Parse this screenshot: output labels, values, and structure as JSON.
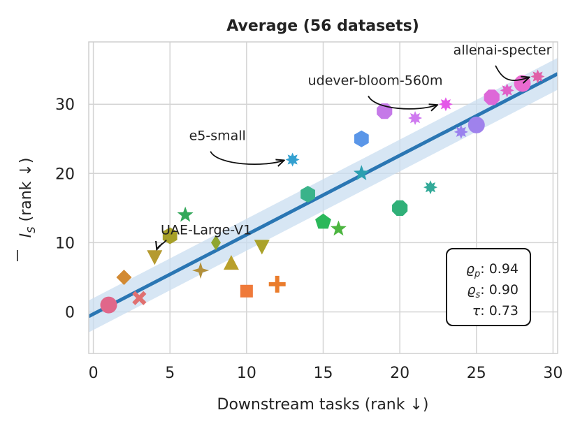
{
  "chart_data": {
    "type": "scatter",
    "title": "Average (56 datasets)",
    "xlabel": "Downstream tasks (rank ↓)",
    "ylabel_main": "I",
    "ylabel_sub": "S",
    "ylabel_rest": " (rank ↓)",
    "xlim": [
      -0.3,
      30.3
    ],
    "ylim": [
      -6,
      39
    ],
    "xticks": [
      0,
      5,
      10,
      15,
      20,
      25,
      30
    ],
    "yticks": [
      0,
      10,
      20,
      30
    ],
    "grid": true,
    "regression": {
      "intercept": -0.3,
      "slope": 1.145,
      "band_half_width": 2.3,
      "color": "#2a76b3",
      "band_color": "#c9ddf0"
    },
    "stats": [
      {
        "sym": "ϱ",
        "sub": "p",
        "value": "0.94"
      },
      {
        "sym": "ϱ",
        "sub": "s",
        "value": "0.90"
      },
      {
        "sym": "τ",
        "sub": "",
        "value": "0.73"
      }
    ],
    "points": [
      {
        "x": 1,
        "y": 1,
        "marker": "circle",
        "color": "#e0678a"
      },
      {
        "x": 2,
        "y": 5,
        "marker": "diamond",
        "color": "#d28a33"
      },
      {
        "x": 3,
        "y": 2,
        "marker": "x",
        "color": "#e07070"
      },
      {
        "x": 4,
        "y": 8,
        "marker": "triangle-down",
        "color": "#b59a30"
      },
      {
        "x": 5,
        "y": 11,
        "marker": "hexagon",
        "color": "#a7a028"
      },
      {
        "x": 6,
        "y": 14,
        "marker": "star",
        "color": "#33a85a"
      },
      {
        "x": 7,
        "y": 6,
        "marker": "star4",
        "color": "#b3903a"
      },
      {
        "x": 8,
        "y": 10,
        "marker": "diamond-thin",
        "color": "#8fa630"
      },
      {
        "x": 9,
        "y": 7,
        "marker": "triangle-up",
        "color": "#b9a02a"
      },
      {
        "x": 10,
        "y": 3,
        "marker": "square",
        "color": "#ef7a3a"
      },
      {
        "x": 11,
        "y": 9.5,
        "marker": "triangle-down",
        "color": "#aaa22a"
      },
      {
        "x": 12,
        "y": 4,
        "marker": "plus",
        "color": "#ea7c2c"
      },
      {
        "x": 13,
        "y": 22,
        "marker": "burst",
        "color": "#33a0d0"
      },
      {
        "x": 14,
        "y": 17,
        "marker": "hexagon",
        "color": "#3ab38a"
      },
      {
        "x": 15,
        "y": 13,
        "marker": "pentagon",
        "color": "#2bb85a"
      },
      {
        "x": 16,
        "y": 12,
        "marker": "star",
        "color": "#4cb540"
      },
      {
        "x": 17.5,
        "y": 20,
        "marker": "star",
        "color": "#2a9fb0"
      },
      {
        "x": 17.5,
        "y": 25,
        "marker": "hexagon",
        "color": "#5a96e8"
      },
      {
        "x": 19,
        "y": 29,
        "marker": "octagon",
        "color": "#c57ae8"
      },
      {
        "x": 20,
        "y": 15,
        "marker": "octagon",
        "color": "#30b078"
      },
      {
        "x": 21,
        "y": 28,
        "marker": "burst",
        "color": "#cf7af0"
      },
      {
        "x": 22,
        "y": 18,
        "marker": "burst",
        "color": "#33aa99"
      },
      {
        "x": 23,
        "y": 30,
        "marker": "burst",
        "color": "#e458e8"
      },
      {
        "x": 24,
        "y": 26,
        "marker": "burst",
        "color": "#9a82ee"
      },
      {
        "x": 25,
        "y": 27,
        "marker": "circle",
        "color": "#9f82ec"
      },
      {
        "x": 26,
        "y": 31,
        "marker": "octagon",
        "color": "#dd68d8"
      },
      {
        "x": 27,
        "y": 32,
        "marker": "burst",
        "color": "#e05fc8"
      },
      {
        "x": 28,
        "y": 33,
        "marker": "circle",
        "color": "#ea6ad0"
      },
      {
        "x": 29,
        "y": 34,
        "marker": "burst",
        "color": "#e061a8"
      }
    ],
    "annotations": [
      {
        "label": "allenai-specter",
        "target_x": 29,
        "target_y": 34,
        "text_x": 26.7,
        "text_y": 37.2,
        "anchor": "middle"
      },
      {
        "label": "udever-bloom-560m",
        "target_x": 23,
        "target_y": 30,
        "text_x": 18.4,
        "text_y": 32.8,
        "anchor": "middle"
      },
      {
        "label": "e5-small",
        "target_x": 13,
        "target_y": 22,
        "text_x": 8.1,
        "text_y": 24.8,
        "anchor": "middle"
      },
      {
        "label": "UAE-Large-V1",
        "target_x": 4,
        "target_y": 8,
        "text_x": 4.4,
        "text_y": 11.2,
        "anchor": "start"
      }
    ]
  }
}
